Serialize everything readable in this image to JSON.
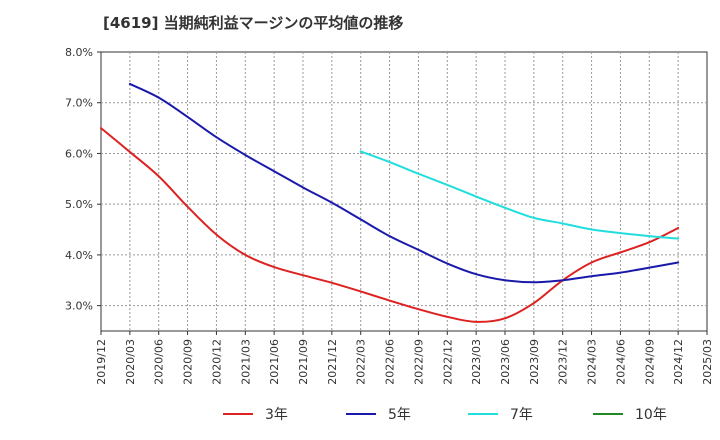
{
  "chart_data": {
    "type": "line",
    "title": "[4619]  当期純利益マージンの平均値の推移",
    "xlabel": "",
    "ylabel": "",
    "ylim": [
      2.5,
      8.0
    ],
    "y_ticks": [
      "8.0%",
      "7.0%",
      "6.0%",
      "5.0%",
      "4.0%",
      "3.0%"
    ],
    "y_tick_values": [
      8.0,
      7.0,
      6.0,
      5.0,
      4.0,
      3.0
    ],
    "x_ticks": [
      "2019/12",
      "2020/03",
      "2020/06",
      "2020/09",
      "2020/12",
      "2021/03",
      "2021/06",
      "2021/09",
      "2021/12",
      "2022/03",
      "2022/06",
      "2022/09",
      "2022/12",
      "2023/03",
      "2023/06",
      "2023/09",
      "2023/12",
      "2024/03",
      "2024/06",
      "2024/09",
      "2024/12",
      "2025/03"
    ],
    "grid": true,
    "legend_position": "bottom",
    "series": [
      {
        "name": "3年",
        "color": "#dd2222",
        "points": [
          {
            "x": "2019/12",
            "y": 6.5
          },
          {
            "x": "2020/03",
            "y": 6.03
          },
          {
            "x": "2020/06",
            "y": 5.55
          },
          {
            "x": "2020/09",
            "y": 4.95
          },
          {
            "x": "2020/12",
            "y": 4.4
          },
          {
            "x": "2021/03",
            "y": 4.0
          },
          {
            "x": "2021/06",
            "y": 3.76
          },
          {
            "x": "2021/09",
            "y": 3.6
          },
          {
            "x": "2021/12",
            "y": 3.45
          },
          {
            "x": "2022/03",
            "y": 3.28
          },
          {
            "x": "2022/06",
            "y": 3.1
          },
          {
            "x": "2022/09",
            "y": 2.93
          },
          {
            "x": "2022/12",
            "y": 2.78
          },
          {
            "x": "2023/03",
            "y": 2.68
          },
          {
            "x": "2023/06",
            "y": 2.75
          },
          {
            "x": "2023/09",
            "y": 3.05
          },
          {
            "x": "2023/12",
            "y": 3.5
          },
          {
            "x": "2024/03",
            "y": 3.85
          },
          {
            "x": "2024/06",
            "y": 4.05
          },
          {
            "x": "2024/09",
            "y": 4.25
          },
          {
            "x": "2024/12",
            "y": 4.53
          }
        ]
      },
      {
        "name": "5年",
        "color": "#1a1aaa",
        "points": [
          {
            "x": "2020/03",
            "y": 7.37
          },
          {
            "x": "2020/06",
            "y": 7.1
          },
          {
            "x": "2020/09",
            "y": 6.72
          },
          {
            "x": "2020/12",
            "y": 6.32
          },
          {
            "x": "2021/03",
            "y": 5.97
          },
          {
            "x": "2021/06",
            "y": 5.65
          },
          {
            "x": "2021/09",
            "y": 5.33
          },
          {
            "x": "2021/12",
            "y": 5.03
          },
          {
            "x": "2022/03",
            "y": 4.7
          },
          {
            "x": "2022/06",
            "y": 4.37
          },
          {
            "x": "2022/09",
            "y": 4.1
          },
          {
            "x": "2022/12",
            "y": 3.83
          },
          {
            "x": "2023/03",
            "y": 3.62
          },
          {
            "x": "2023/06",
            "y": 3.5
          },
          {
            "x": "2023/09",
            "y": 3.46
          },
          {
            "x": "2023/12",
            "y": 3.5
          },
          {
            "x": "2024/03",
            "y": 3.58
          },
          {
            "x": "2024/06",
            "y": 3.65
          },
          {
            "x": "2024/09",
            "y": 3.75
          },
          {
            "x": "2024/12",
            "y": 3.85
          }
        ]
      },
      {
        "name": "7年",
        "color": "#22dddd",
        "points": [
          {
            "x": "2022/03",
            "y": 6.04
          },
          {
            "x": "2022/06",
            "y": 5.83
          },
          {
            "x": "2022/09",
            "y": 5.6
          },
          {
            "x": "2022/12",
            "y": 5.38
          },
          {
            "x": "2023/03",
            "y": 5.15
          },
          {
            "x": "2023/06",
            "y": 4.93
          },
          {
            "x": "2023/09",
            "y": 4.73
          },
          {
            "x": "2023/12",
            "y": 4.62
          },
          {
            "x": "2024/03",
            "y": 4.5
          },
          {
            "x": "2024/06",
            "y": 4.43
          },
          {
            "x": "2024/09",
            "y": 4.37
          },
          {
            "x": "2024/12",
            "y": 4.32
          }
        ]
      },
      {
        "name": "10年",
        "color": "#228822",
        "points": []
      }
    ]
  }
}
